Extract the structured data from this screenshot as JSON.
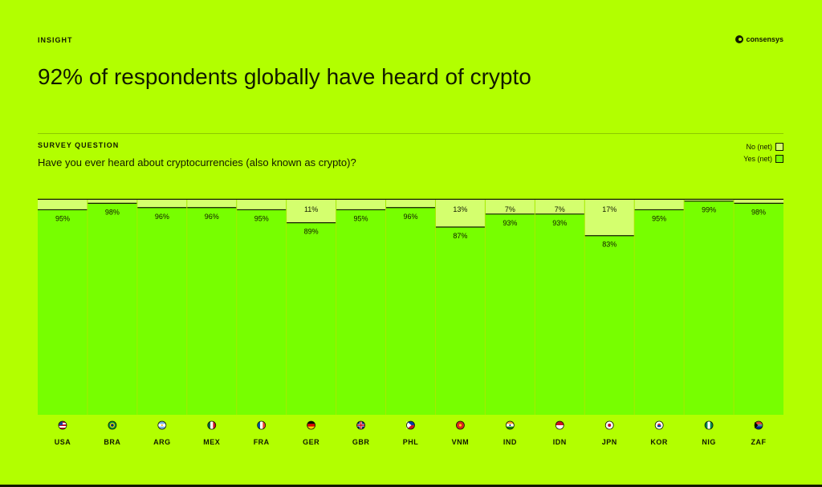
{
  "header": {
    "kicker": "INSIGHT",
    "brand": "consensys",
    "title": "92% of respondents globally have heard of crypto"
  },
  "survey": {
    "label": "SURVEY QUESTION",
    "question": "Have you ever heard about cryptocurrencies (also known as crypto)?"
  },
  "legend": {
    "no": "No (net)",
    "yes": "Yes (net)"
  },
  "colors": {
    "background": "#b2ff00",
    "yes": "#77ff00",
    "no": "#d4ff6e",
    "ink": "#121a00"
  },
  "chart_data": {
    "type": "bar",
    "stacked": true,
    "categories": [
      "USA",
      "BRA",
      "ARG",
      "MEX",
      "FRA",
      "GER",
      "GBR",
      "PHL",
      "VNM",
      "IND",
      "IDN",
      "JPN",
      "KOR",
      "NIG",
      "ZAF"
    ],
    "flags": [
      "us-flag-icon",
      "br-flag-icon",
      "ar-flag-icon",
      "mx-flag-icon",
      "fr-flag-icon",
      "de-flag-icon",
      "gb-flag-icon",
      "ph-flag-icon",
      "vn-flag-icon",
      "in-flag-icon",
      "id-flag-icon",
      "jp-flag-icon",
      "kr-flag-icon",
      "ng-flag-icon",
      "za-flag-icon"
    ],
    "series": [
      {
        "name": "Yes (net)",
        "values": [
          95,
          98,
          96,
          96,
          95,
          89,
          95,
          96,
          87,
          93,
          93,
          83,
          95,
          99,
          98
        ]
      },
      {
        "name": "No (net)",
        "values": [
          5,
          2,
          4,
          4,
          5,
          11,
          5,
          4,
          13,
          7,
          7,
          17,
          5,
          1,
          2
        ]
      }
    ],
    "yes_labels": [
      "95%",
      "98%",
      "96%",
      "96%",
      "95%",
      "89%",
      "95%",
      "96%",
      "87%",
      "93%",
      "93%",
      "83%",
      "95%",
      "99%",
      "98%"
    ],
    "no_labels": [
      "",
      "",
      "",
      "",
      "",
      "11%",
      "",
      "",
      "13%",
      "7%",
      "7%",
      "17%",
      "",
      "",
      ""
    ],
    "ylim": [
      0,
      100
    ],
    "legend_position": "top-right"
  }
}
